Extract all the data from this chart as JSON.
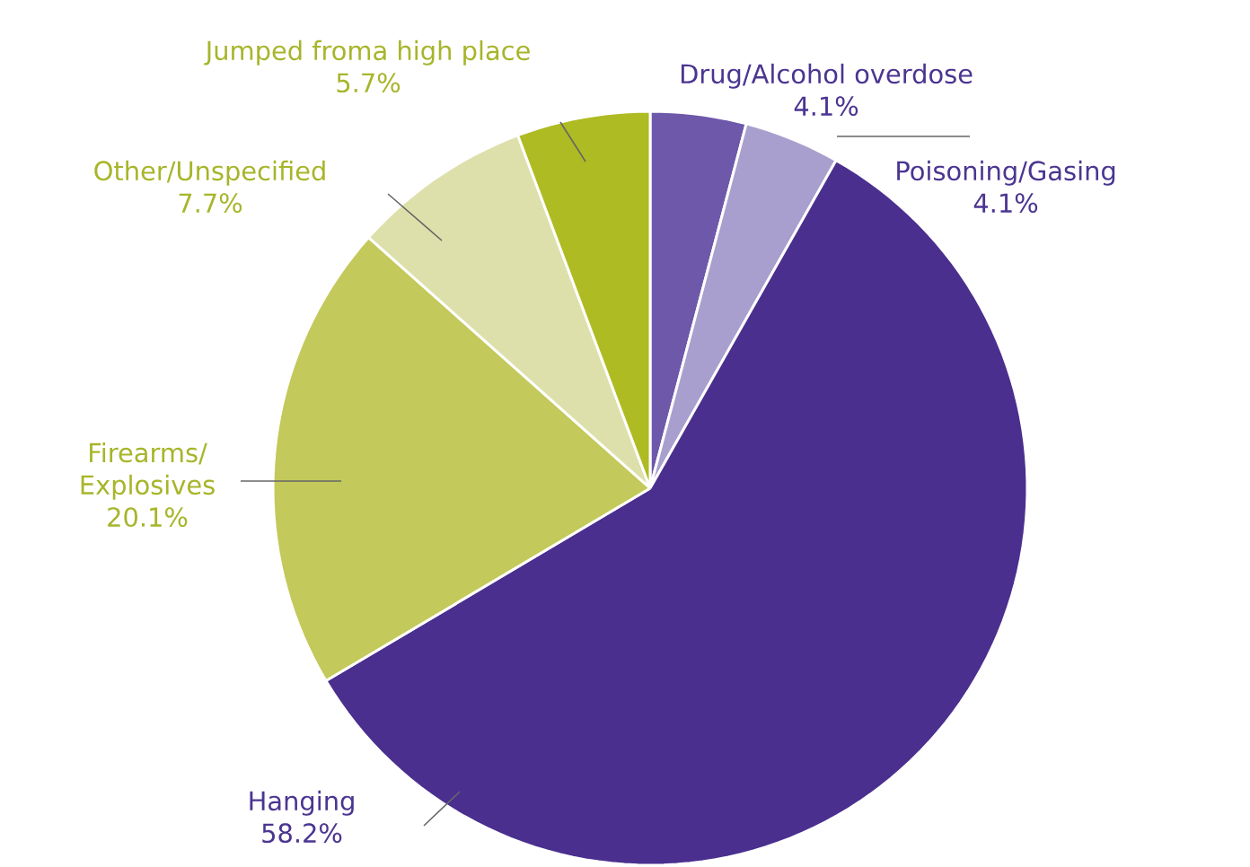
{
  "chart_data": {
    "type": "pie",
    "categories": [
      "Drug/Alcohol overdose",
      "Poisoning/Gasing",
      "Hanging",
      "Firearms/ Explosives",
      "Other/Unspecified",
      "Jumped froma high place"
    ],
    "values": [
      4.1,
      4.1,
      58.2,
      20.1,
      7.7,
      5.7
    ],
    "value_labels": [
      "4.1%",
      "4.1%",
      "58.2%",
      "20.1%",
      "7.7%",
      "5.7%"
    ],
    "colors": [
      "#6e58aa",
      "#a99fce",
      "#4a2f8f",
      "#c3c95a",
      "#dde0aa",
      "#afbb22"
    ]
  }
}
